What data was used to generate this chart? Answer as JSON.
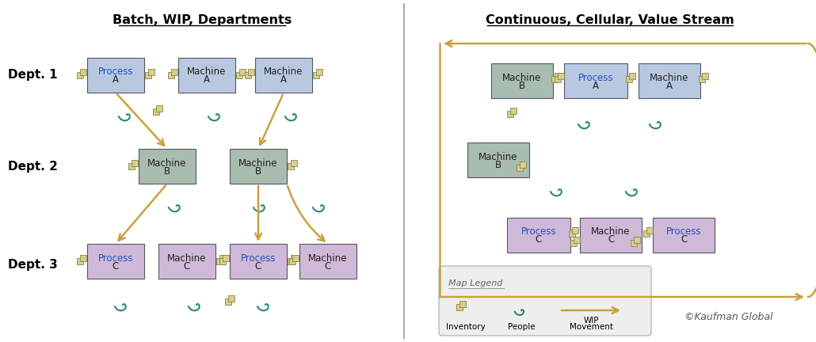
{
  "left_title": "Batch, WIP, Departments",
  "right_title": "Continuous, Cellular, Value Stream",
  "color_blue": "#b8c8e0",
  "color_green": "#a8bcb0",
  "color_pink": "#d0b8d8",
  "color_inventory": "#d8cc90",
  "color_arrow": "#c8a040",
  "color_people": "#2a8878",
  "color_divider": "#aaaaaa",
  "copyright": "©Kaufman Global"
}
